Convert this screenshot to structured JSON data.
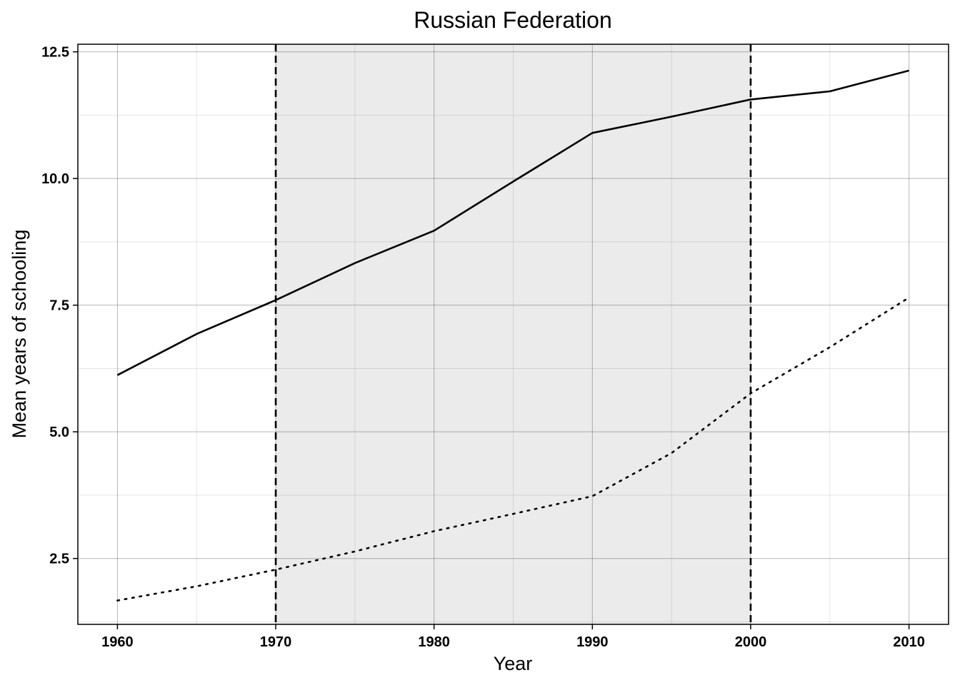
{
  "chart_data": {
    "type": "line",
    "title": "Russian Federation",
    "xlabel": "Year",
    "ylabel": "Mean years of schooling",
    "xlim": [
      1957.5,
      2012.5
    ],
    "ylim": [
      1.2,
      12.65
    ],
    "x_ticks": [
      1960,
      1970,
      1980,
      1990,
      2000,
      2010
    ],
    "x_tick_labels": [
      "1960",
      "1970",
      "1980",
      "1990",
      "2000",
      "2010"
    ],
    "y_ticks": [
      2.5,
      5.0,
      7.5,
      10.0,
      12.5
    ],
    "y_tick_labels": [
      "2.5",
      "5.0",
      "7.5",
      "10.0",
      "12.5"
    ],
    "grid": true,
    "shaded_region": {
      "x_start": 1970,
      "x_end": 2000,
      "color": "#ebebeb"
    },
    "vlines": [
      {
        "x": 1970,
        "style": "dashed"
      },
      {
        "x": 2000,
        "style": "dashed"
      }
    ],
    "x": [
      1960,
      1965,
      1970,
      1975,
      1980,
      1985,
      1990,
      1995,
      2000,
      2005,
      2010
    ],
    "series": [
      {
        "style": "solid",
        "values": [
          6.12,
          6.93,
          7.6,
          8.33,
          8.97,
          9.94,
          10.9,
          11.22,
          11.56,
          11.72,
          12.13
        ]
      },
      {
        "style": "dotted",
        "values": [
          1.67,
          1.95,
          2.28,
          2.64,
          3.04,
          3.38,
          3.73,
          4.58,
          5.76,
          6.67,
          7.65
        ]
      }
    ]
  }
}
